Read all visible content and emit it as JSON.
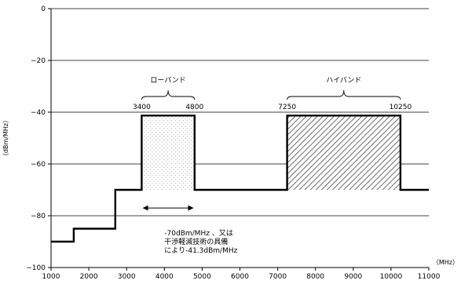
{
  "chart_data": {
    "type": "line",
    "title": "",
    "xlabel": "",
    "xunit": "（MHz）",
    "ylabel": "（dBm/MHz）",
    "xlim": [
      1000,
      11000
    ],
    "ylim": [
      -100,
      0
    ],
    "x_ticks": [
      1000,
      2000,
      3000,
      4000,
      5000,
      6000,
      7000,
      8000,
      9000,
      10000,
      11000
    ],
    "y_ticks": [
      0,
      -20,
      -40,
      -60,
      -80,
      -100
    ],
    "y_tick_labels": [
      "0",
      "−20",
      "−40",
      "−60",
      "−80",
      "−100"
    ],
    "grid": "horizontal",
    "legend": "none",
    "series": [
      {
        "x": [
          1000,
          1600,
          1600,
          2700,
          2700,
          3400,
          3400,
          4800,
          4800,
          7250,
          7250,
          10250,
          10250,
          11000
        ],
        "y": [
          -90,
          -90,
          -85,
          -85,
          -70,
          -70,
          -41.3,
          -41.3,
          -70,
          -70,
          -41.3,
          -41.3,
          -70,
          -70
        ]
      }
    ],
    "bands": [
      {
        "label": "ローバンド",
        "start": 3400,
        "end": 4800,
        "start_label": "3400",
        "end_label": "4800",
        "fill": "dots"
      },
      {
        "label": "ハイバンド",
        "start": 7250,
        "end": 10250,
        "start_label": "7250",
        "end_label": "10250",
        "fill": "hatch"
      }
    ],
    "annotation": {
      "lines": [
        "-70dBm/MHz 、又は",
        "干渉軽減技術の具備",
        "により-41.3dBm/MHz"
      ],
      "arrow_x": [
        3400,
        4800
      ],
      "arrow_y": -77
    },
    "colors": {
      "line": "#000000",
      "grid": "#000000",
      "hatch": "#777777",
      "dots": "#9a9a9a"
    }
  }
}
